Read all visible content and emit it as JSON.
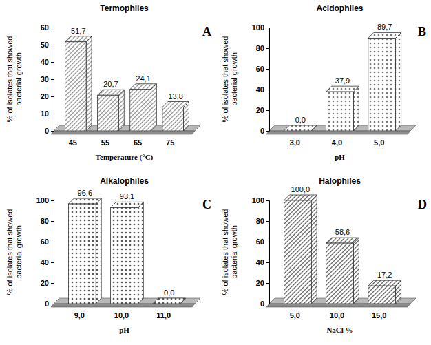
{
  "chart_data": [
    {
      "type": "bar",
      "title": "Termophiles",
      "xlabel": "Temperature (°C)",
      "ylabel": "% of isolates that showed bacterial growth",
      "categories": [
        "45",
        "55",
        "65",
        "75"
      ],
      "values": [
        51.7,
        20.7,
        24.1,
        13.8
      ],
      "value_labels": [
        "51,7",
        "20,7",
        "24,1",
        "13,8"
      ],
      "data_labels": true,
      "color": "#9a9a9a",
      "ylim": [
        0,
        60
      ],
      "yticks": [
        0,
        10,
        20,
        30,
        40,
        50,
        60
      ],
      "annotations": [
        "A"
      ]
    },
    {
      "type": "bar",
      "title": "Acidophiles",
      "xlabel": "pH",
      "ylabel": "% of isolates that showed bacterial growth",
      "categories": [
        "3,0",
        "4,0",
        "5,0"
      ],
      "values": [
        0,
        37.9,
        89.7
      ],
      "value_labels": [
        "0,0",
        "37,9",
        "89,7"
      ],
      "data_labels": true,
      "color": "#7a7a7a",
      "ylim": [
        0,
        100
      ],
      "yticks": [
        0,
        20,
        40,
        60,
        80,
        100
      ],
      "annotations": [
        "B"
      ]
    },
    {
      "type": "bar",
      "title": "Alkalophiles",
      "xlabel": "pH",
      "ylabel": "% of isolates that showed bacterial growth",
      "categories": [
        "9,0",
        "10,0",
        "11,0"
      ],
      "values": [
        96.6,
        93.1,
        0
      ],
      "value_labels": [
        "96,6",
        "93,1",
        "0,0"
      ],
      "data_labels": true,
      "color": "#5a5a5a",
      "ylim": [
        0,
        100
      ],
      "yticks": [
        0,
        20,
        40,
        60,
        80,
        100
      ],
      "annotations": [
        "C"
      ]
    },
    {
      "type": "bar",
      "title": "Halophiles",
      "xlabel": "NaCl %",
      "ylabel": "% of isolates that showed bacterial growth",
      "categories": [
        "5,0",
        "10,0",
        "15,0"
      ],
      "values": [
        100,
        58.6,
        17.2
      ],
      "value_labels": [
        "100,0",
        "58,6",
        "17,2"
      ],
      "data_labels": true,
      "color": "#6a6a6a",
      "ylim": [
        0,
        100
      ],
      "yticks": [
        0,
        20,
        40,
        60,
        80,
        100
      ],
      "annotations": [
        "D"
      ]
    }
  ]
}
